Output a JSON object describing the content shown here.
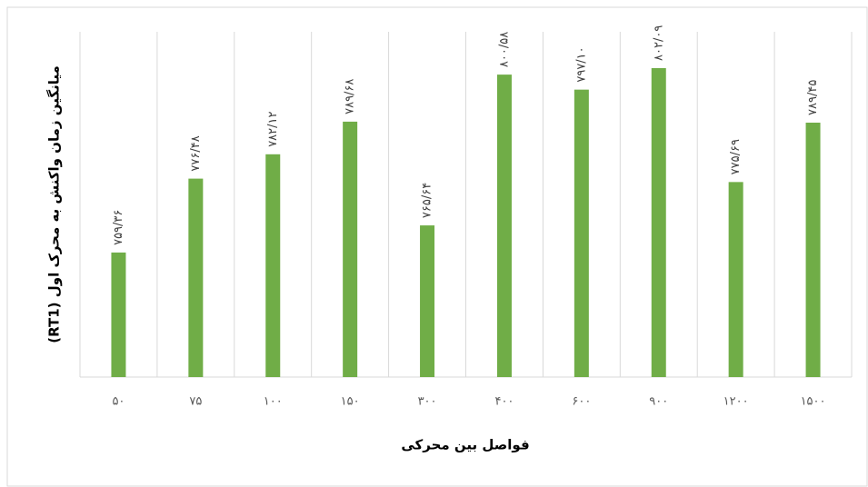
{
  "chart_data": {
    "type": "bar",
    "categories": [
      "۵۰",
      "۷۵",
      "۱۰۰",
      "۱۵۰",
      "۳۰۰",
      "۴۰۰",
      "۶۰۰",
      "۹۰۰",
      "۱۲۰۰",
      "۱۵۰۰"
    ],
    "values": [
      759.36,
      776.48,
      782.12,
      789.68,
      765.64,
      800.58,
      797.1,
      802.09,
      775.69,
      789.45
    ],
    "value_labels": [
      "۷۵۹/۳۶",
      "۷۷۶/۴۸",
      "۷۸۲/۱۲",
      "۷۸۹/۶۸",
      "۷۶۵/۶۴",
      "۸۰۰/۵۸",
      "۷۹۷/۱۰",
      "۸۰۲/۰۹",
      "۷۷۵/۶۹",
      "۷۸۹/۴۵"
    ],
    "color": "#70ad47",
    "ylim": [
      730.5,
      810.5
    ],
    "x_label": "فواصل بین محرکی",
    "y_label": "میانگین زمان واکنش به محرک اول (RT1)"
  }
}
